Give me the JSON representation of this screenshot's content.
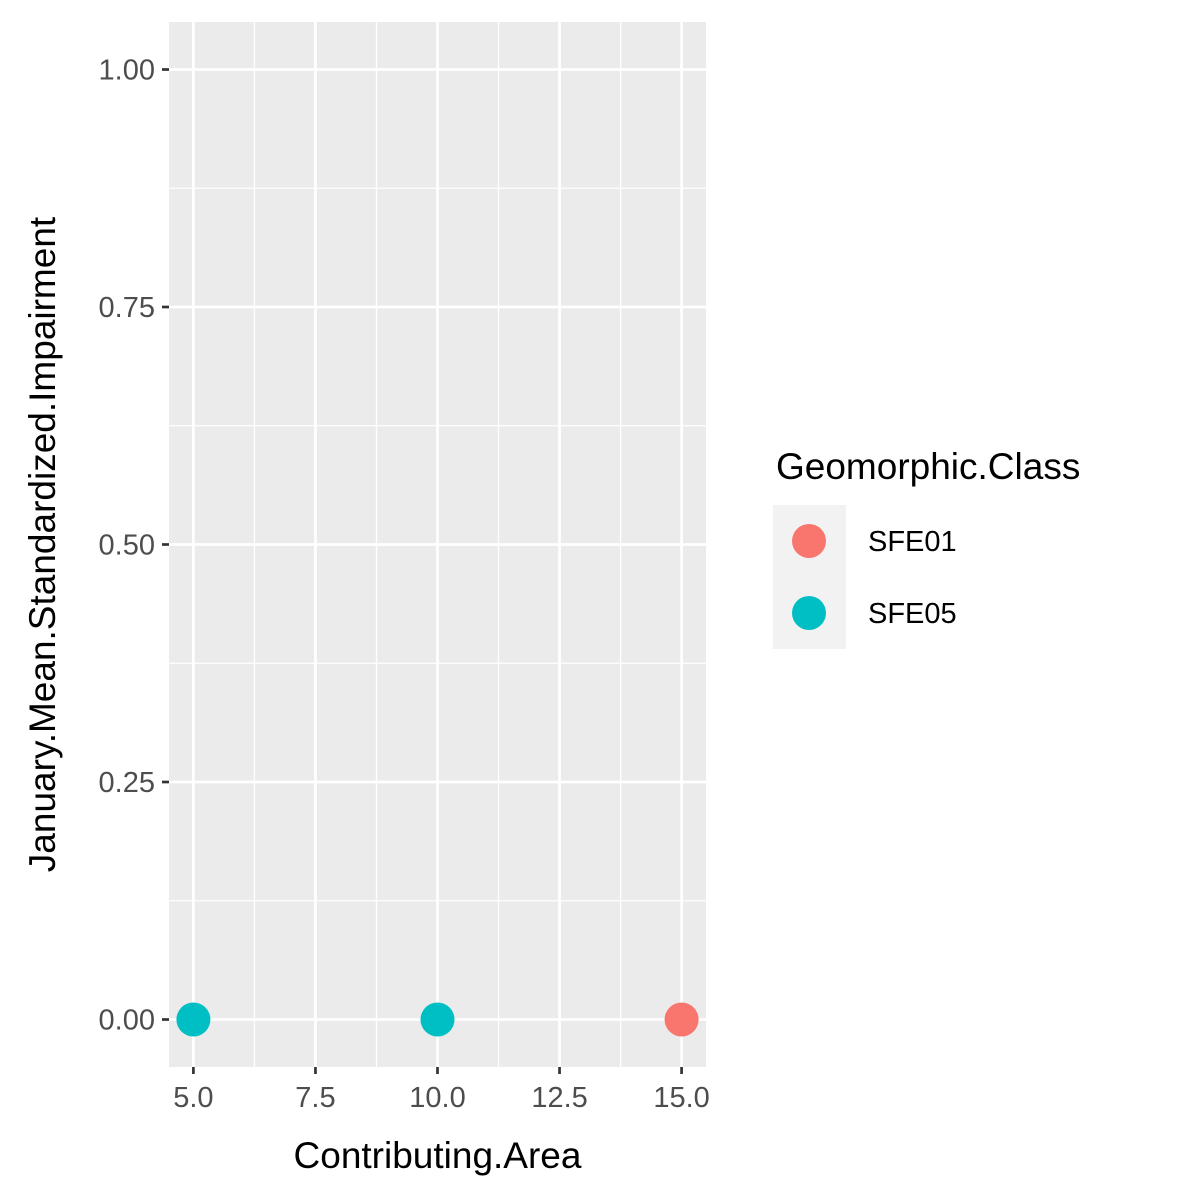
{
  "chart_data": {
    "type": "scatter",
    "xlabel": "Contributing.Area",
    "ylabel": "January.Mean.Standardized.Impairment",
    "xlim": [
      4.5,
      15.5
    ],
    "ylim": [
      -0.05,
      1.05
    ],
    "x_ticks": [
      "5.0",
      "7.5",
      "10.0",
      "12.5",
      "15.0"
    ],
    "x_tick_values": [
      5,
      7.5,
      10,
      12.5,
      15
    ],
    "y_ticks": [
      "0.00",
      "0.25",
      "0.50",
      "0.75",
      "1.00"
    ],
    "y_tick_values": [
      0,
      0.25,
      0.5,
      0.75,
      1
    ],
    "grid": true,
    "legend": {
      "title": "Geomorphic.Class",
      "position": "right"
    },
    "series": [
      {
        "name": "SFE01",
        "color": "#F8766D",
        "points": [
          {
            "x": 15,
            "y": 0
          }
        ]
      },
      {
        "name": "SFE05",
        "color": "#00BFC4",
        "points": [
          {
            "x": 5,
            "y": 0
          },
          {
            "x": 10,
            "y": 0
          }
        ]
      }
    ]
  }
}
